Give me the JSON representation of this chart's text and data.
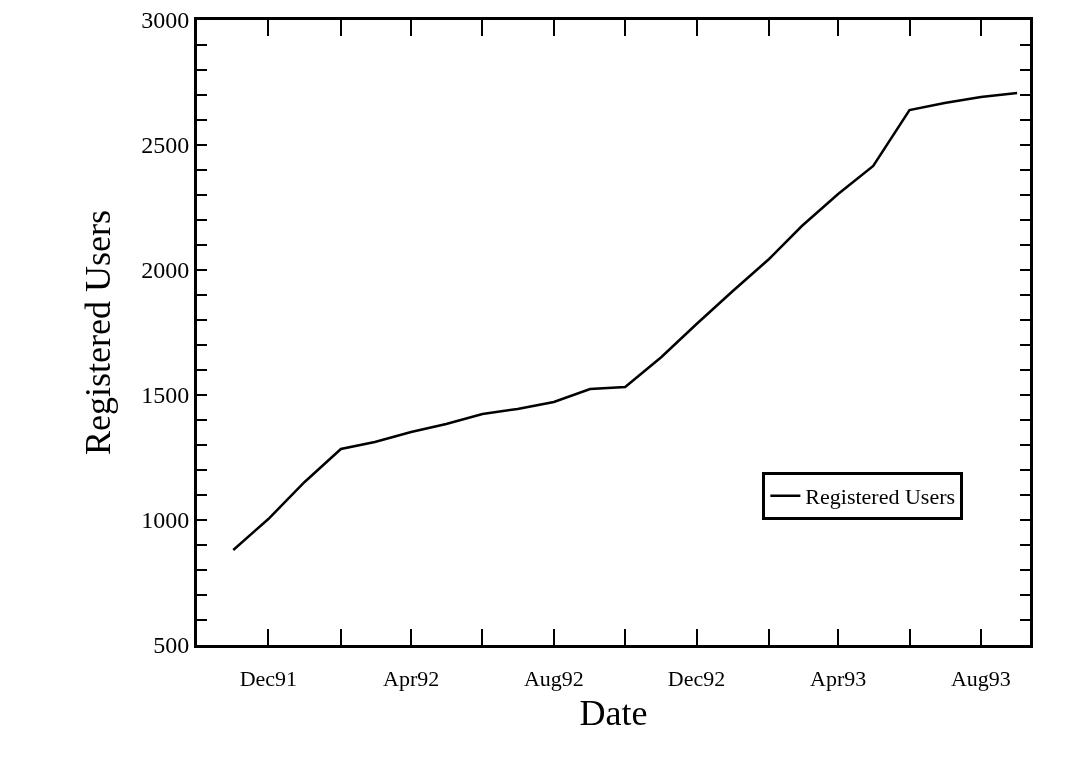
{
  "chart_data": {
    "type": "line",
    "xlabel": "Date",
    "ylabel": "Registered Users",
    "x": [
      "1991-11",
      "1991-12",
      "1992-01",
      "1992-02",
      "1992-03",
      "1992-04",
      "1992-05",
      "1992-06",
      "1992-07",
      "1992-08",
      "1992-09",
      "1992-10",
      "1992-11",
      "1992-12",
      "1993-01",
      "1993-02",
      "1993-03",
      "1993-04",
      "1993-05",
      "1993-06",
      "1993-07",
      "1993-08",
      "1993-09"
    ],
    "series": [
      {
        "name": "Registered Users",
        "color": "#000000",
        "values": [
          880,
          1004,
          1152,
          1284,
          1312,
          1352,
          1384,
          1424,
          1444,
          1472,
          1524,
          1532,
          1652,
          1784,
          1916,
          2044,
          2176,
          2304,
          2416,
          2640,
          2668,
          2692,
          2708
        ]
      }
    ],
    "xlim": [
      "1991-10-01",
      "1993-09-12"
    ],
    "xticks": [
      {
        "value": "1991-12",
        "label": "Dec91"
      },
      {
        "value": "1992-02",
        "label": null
      },
      {
        "value": "1992-04",
        "label": "Apr92"
      },
      {
        "value": "1992-06",
        "label": null
      },
      {
        "value": "1992-08",
        "label": "Aug92"
      },
      {
        "value": "1992-10",
        "label": null
      },
      {
        "value": "1992-12",
        "label": "Dec92"
      },
      {
        "value": "1993-02",
        "label": null
      },
      {
        "value": "1993-04",
        "label": "Apr93"
      },
      {
        "value": "1993-06",
        "label": null
      },
      {
        "value": "1993-08",
        "label": "Aug93"
      }
    ],
    "ylim": [
      500,
      3000
    ],
    "yticks": [
      500,
      {
        "value": 600,
        "label": null
      },
      {
        "value": 700,
        "label": null
      },
      {
        "value": 800,
        "label": null
      },
      {
        "value": 900,
        "label": null
      },
      1000,
      {
        "value": 1100,
        "label": null
      },
      {
        "value": 1200,
        "label": null
      },
      {
        "value": 1300,
        "label": null
      },
      {
        "value": 1400,
        "label": null
      },
      1500,
      {
        "value": 1600,
        "label": null
      },
      {
        "value": 1700,
        "label": null
      },
      {
        "value": 1800,
        "label": null
      },
      {
        "value": 1900,
        "label": null
      },
      2000,
      {
        "value": 2100,
        "label": null
      },
      {
        "value": 2200,
        "label": null
      },
      {
        "value": 2300,
        "label": null
      },
      {
        "value": 2400,
        "label": null
      },
      2500,
      {
        "value": 2600,
        "label": null
      },
      {
        "value": 2700,
        "label": null
      },
      {
        "value": 2800,
        "label": null
      },
      {
        "value": 2900,
        "label": null
      },
      3000
    ],
    "grid": false,
    "legend": "bottom right",
    "marker": "none",
    "line_style": "solid"
  }
}
